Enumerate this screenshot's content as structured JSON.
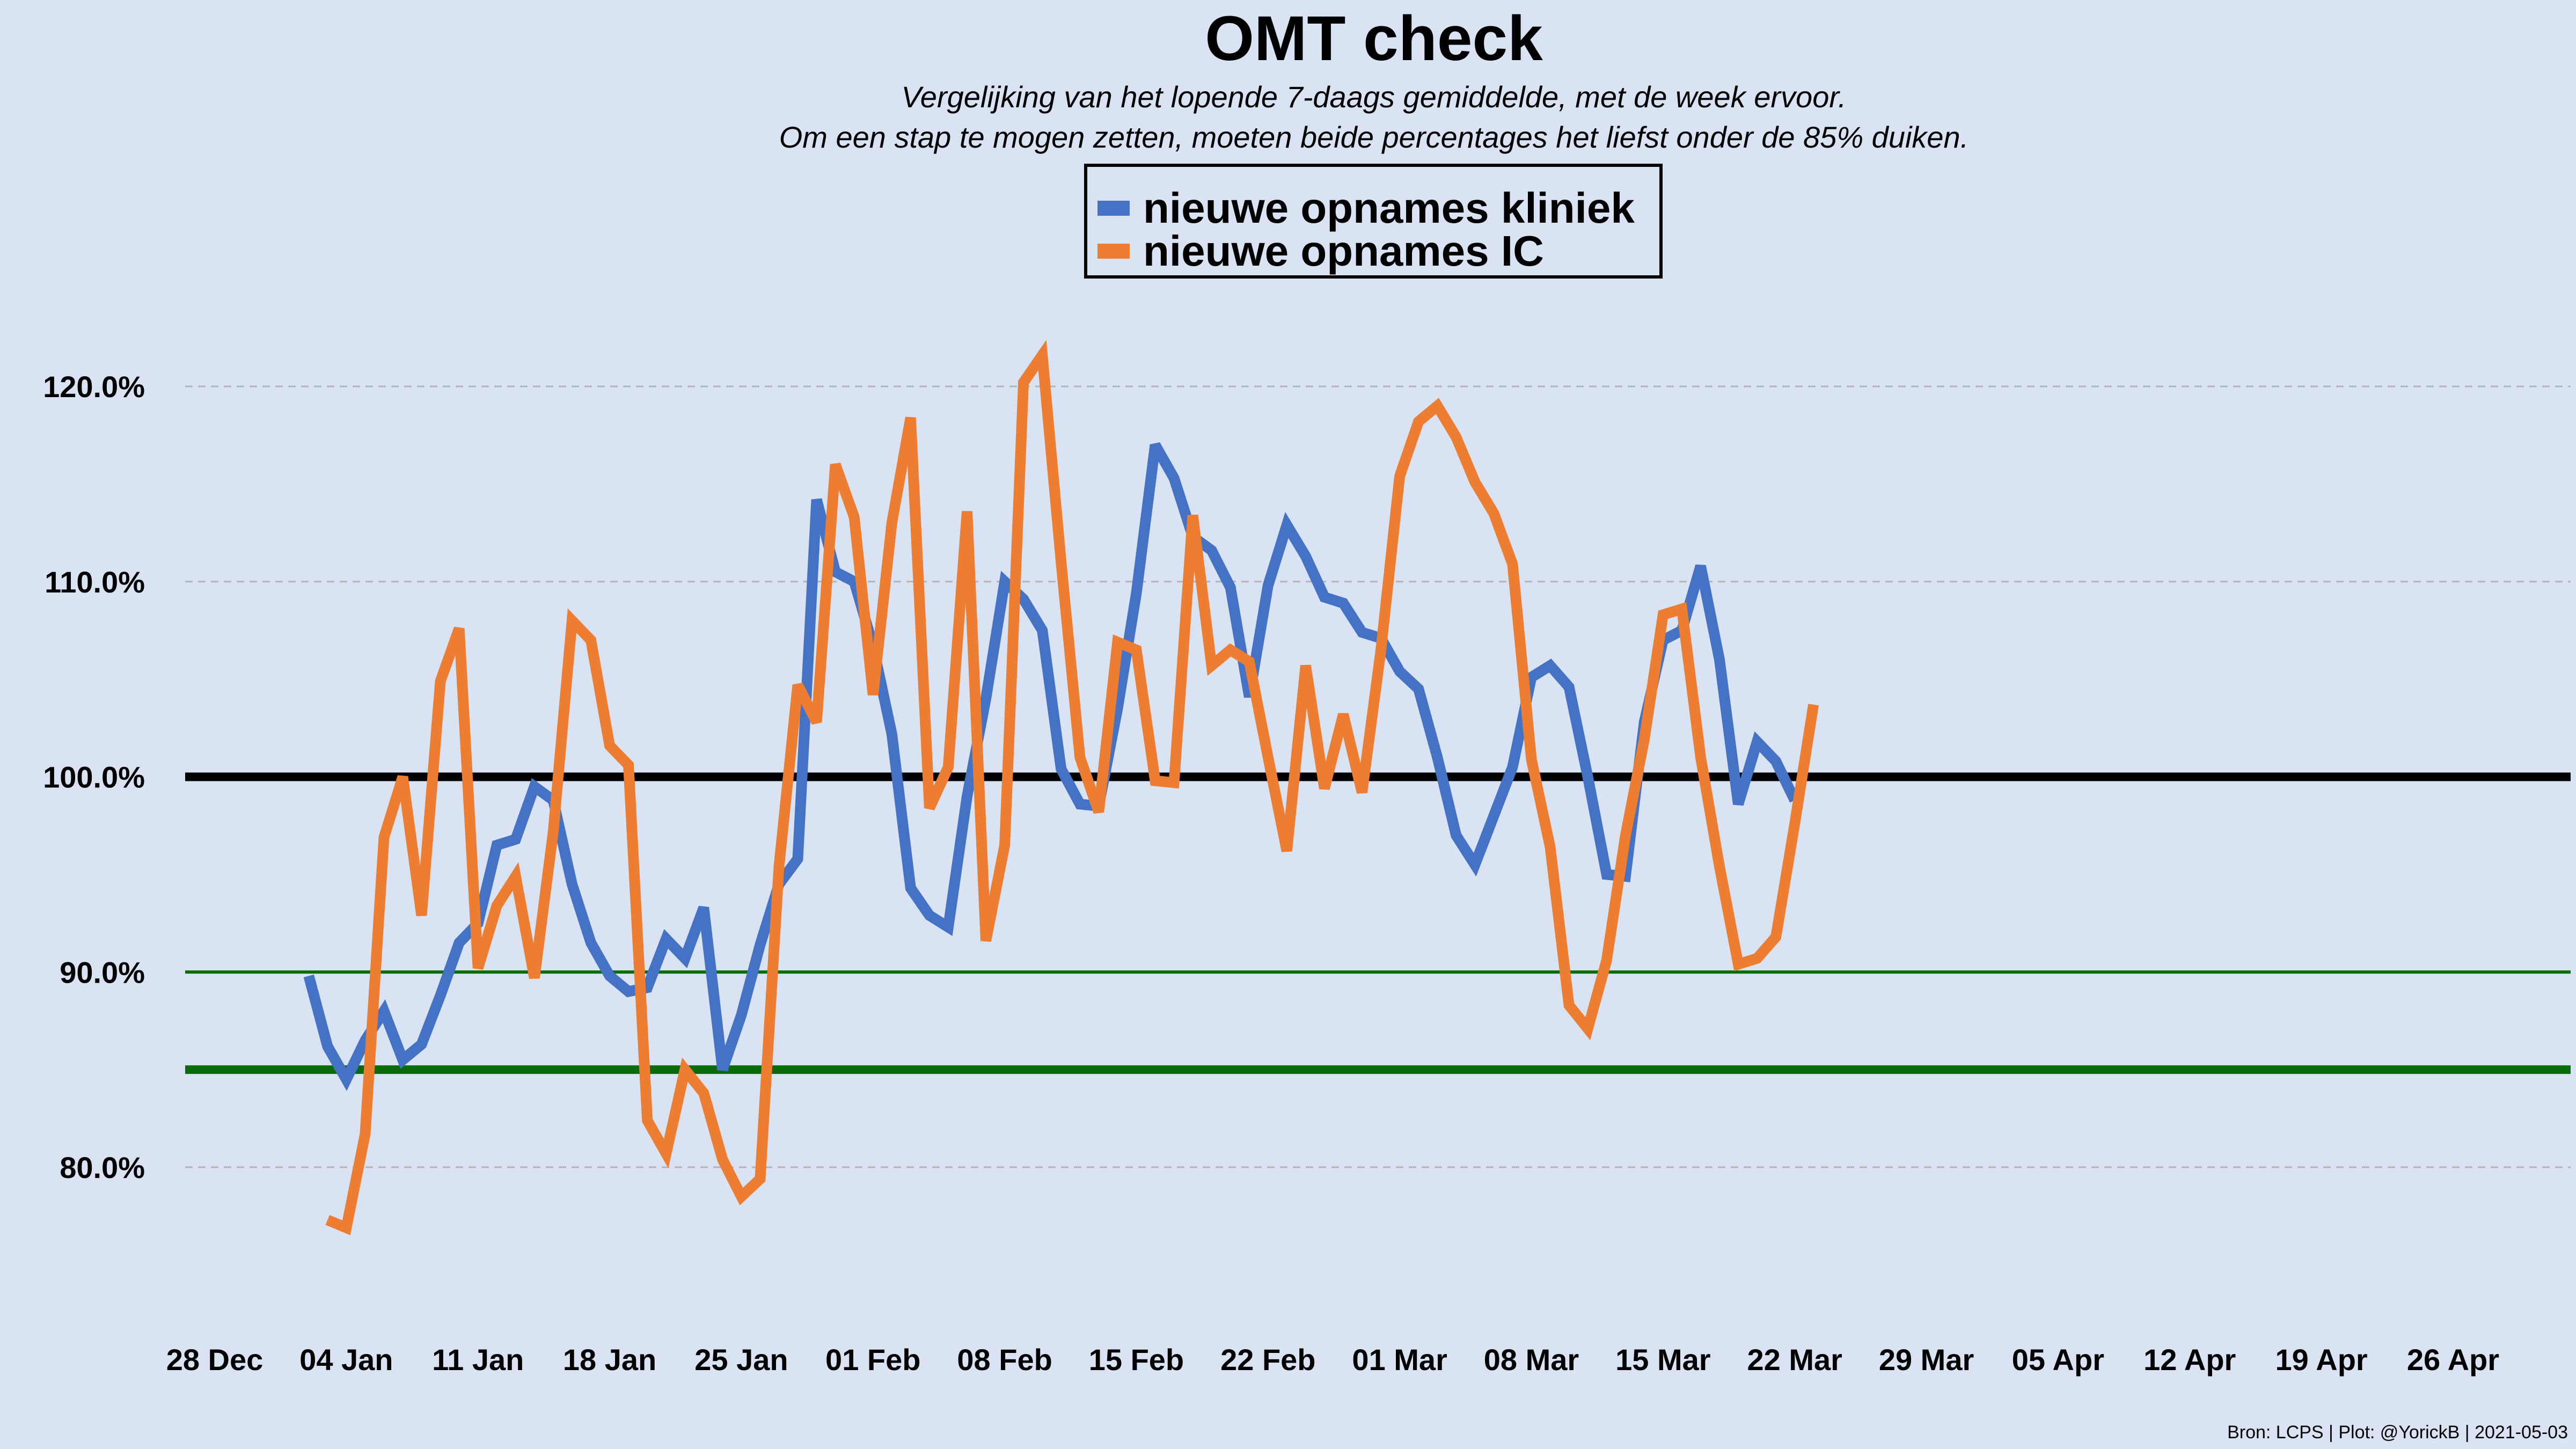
{
  "chart_data": {
    "type": "line",
    "title": "OMT check",
    "subtitle_lines": [
      "Vergelijking van het lopende 7-daags gemiddelde, met de week ervoor.",
      "Om een stap te mogen zetten, moeten beide percentages het liefst onder de 85% duiken."
    ],
    "source": "Bron: LCPS | Plot: @YorickB |  2021-05-03",
    "legend_position": "top-center",
    "grid": "horizontal dashed",
    "ylim": [
      73,
      126
    ],
    "yticks": [
      80,
      90,
      100,
      110,
      120
    ],
    "ytick_labels": [
      "80.0%",
      "90.0%",
      "100.0%",
      "110.0%",
      "120.0%"
    ],
    "xtick_labels": [
      "28 Dec",
      "04 Jan",
      "11 Jan",
      "18 Jan",
      "25 Jan",
      "01 Feb",
      "08 Feb",
      "15 Feb",
      "22 Feb",
      "01 Mar",
      "08 Mar",
      "15 Mar",
      "22 Mar",
      "29 Mar",
      "05 Apr",
      "12 Apr",
      "19 Apr",
      "26 Apr"
    ],
    "x_range_days": [
      -1.5,
      121.5
    ],
    "reference_lines": [
      {
        "value": 100,
        "color": "#000000",
        "weight": "thick"
      },
      {
        "value": 90,
        "color": "#0b6b0b",
        "weight": "thin"
      },
      {
        "value": 85,
        "color": "#0b6b0b",
        "weight": "thick"
      }
    ],
    "series": [
      {
        "name": "nieuwe opnames kliniek",
        "color": "#4472c4",
        "start_date": "2021-01-02",
        "values": [
          89.8,
          86.2,
          84.5,
          86.5,
          88.0,
          85.5,
          86.3,
          88.8,
          91.5,
          92.5,
          96.5,
          96.8,
          99.5,
          98.8,
          94.5,
          91.5,
          89.8,
          89.0,
          89.2,
          91.7,
          90.7,
          93.3,
          85.0,
          87.8,
          91.4,
          94.5,
          95.8,
          114.2,
          110.5,
          110.0,
          106.7,
          102.2,
          94.3,
          92.9,
          92.3,
          99.0,
          104.0,
          110.0,
          109.1,
          107.5,
          100.4,
          98.6,
          98.5,
          103.5,
          109.4,
          117.0,
          115.3,
          112.3,
          111.6,
          109.7,
          104.1,
          109.8,
          112.9,
          111.3,
          109.2,
          108.9,
          107.4,
          107.1,
          105.4,
          104.5,
          101.0,
          97.0,
          95.5,
          98.0,
          100.5,
          105.1,
          105.7,
          104.6,
          100.0,
          95.0,
          94.9,
          102.8,
          107.0,
          107.5,
          110.8,
          106.0,
          98.6,
          101.8,
          100.8,
          98.8
        ]
      },
      {
        "name": "nieuwe opnames IC",
        "color": "#ed7d31",
        "start_date": "2021-01-03",
        "values": [
          77.3,
          76.9,
          81.7,
          96.9,
          100.0,
          92.9,
          104.9,
          107.6,
          90.2,
          93.4,
          94.9,
          89.7,
          97.2,
          108.0,
          107.0,
          101.6,
          100.6,
          82.4,
          80.7,
          85.0,
          83.8,
          80.4,
          78.5,
          79.4,
          95.4,
          104.7,
          102.8,
          116.0,
          113.3,
          104.2,
          113.0,
          118.4,
          98.4,
          100.5,
          113.6,
          91.6,
          96.5,
          120.2,
          121.6,
          111.0,
          101.0,
          98.2,
          106.9,
          106.5,
          99.8,
          99.7,
          113.4,
          105.7,
          106.5,
          105.9,
          101.0,
          96.2,
          105.7,
          99.4,
          103.2,
          99.2,
          106.5,
          115.4,
          118.2,
          119.0,
          117.4,
          115.1,
          113.5,
          110.9,
          100.9,
          96.4,
          88.3,
          87.1,
          90.6,
          97.0,
          101.9,
          108.3,
          108.6,
          101.0,
          95.4,
          90.4,
          90.7,
          91.8,
          97.6,
          103.7
        ]
      }
    ]
  }
}
